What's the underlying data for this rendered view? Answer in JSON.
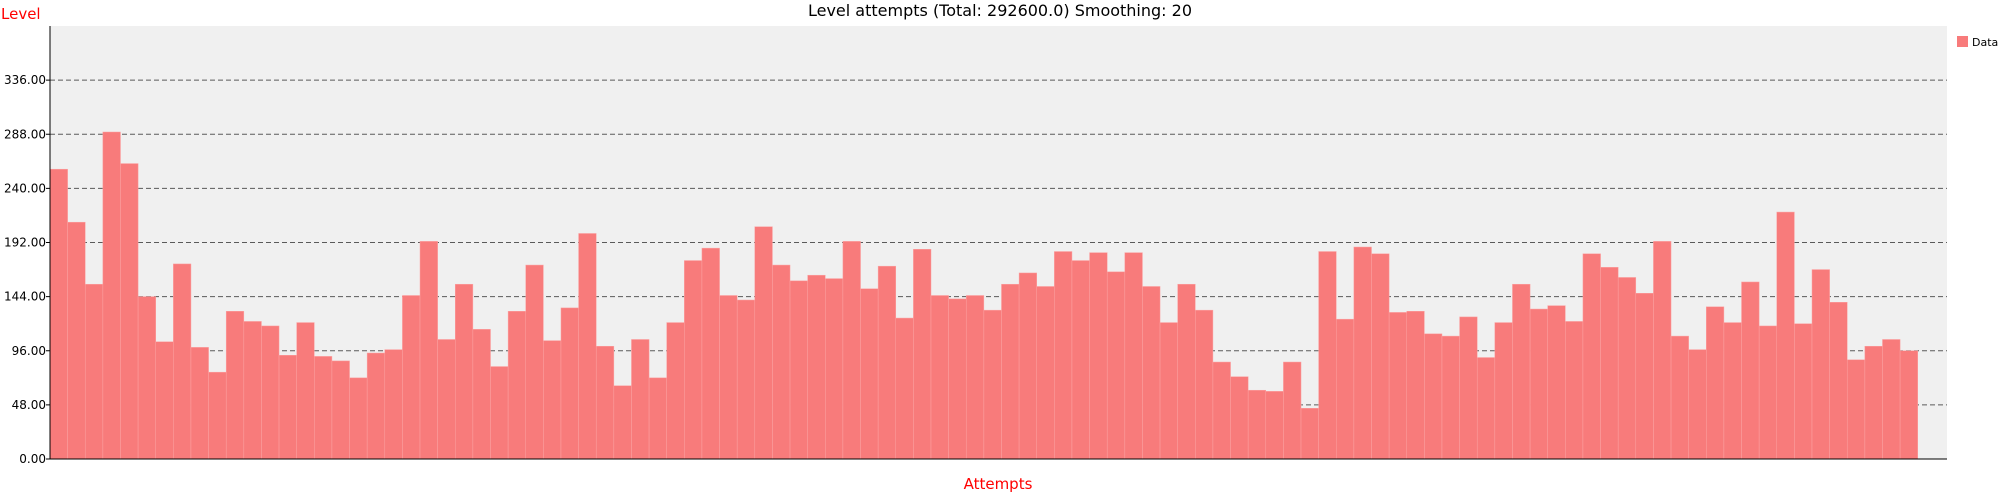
{
  "chart_data": {
    "type": "bar",
    "title": "Level attempts (Total: 292600.0) Smoothing: 20",
    "xlabel": "Attempts",
    "ylabel": "Level",
    "ylim": [
      0,
      384
    ],
    "yticks": [
      "0.00",
      "48.00",
      "96.00",
      "144.00",
      "192.00",
      "240.00",
      "288.00",
      "336.00"
    ],
    "grid": true,
    "legend_position": "top-right",
    "series": [
      {
        "name": "Data",
        "values": [
          257,
          210,
          155,
          290,
          262,
          144,
          104,
          173,
          99,
          77,
          131,
          122,
          118,
          92,
          121,
          91,
          87,
          72,
          94,
          97,
          145,
          193,
          106,
          155,
          115,
          82,
          131,
          172,
          105,
          134,
          200,
          100,
          65,
          106,
          72,
          121,
          176,
          187,
          145,
          141,
          206,
          172,
          158,
          163,
          160,
          193,
          151,
          171,
          125,
          186,
          145,
          142,
          145,
          132,
          155,
          165,
          153,
          184,
          176,
          183,
          166,
          183,
          153,
          121,
          155,
          132,
          86,
          73,
          61,
          60,
          86,
          45,
          184,
          124,
          188,
          182,
          130,
          131,
          111,
          109,
          126,
          90,
          121,
          155,
          133,
          136,
          122,
          182,
          170,
          161,
          147,
          193,
          109,
          97,
          135,
          121,
          157,
          118,
          219,
          120,
          168,
          139,
          88,
          100,
          106,
          96
        ]
      }
    ]
  },
  "colors": {
    "bar": "#f87b7b",
    "plot_background": "#f0f0f0",
    "label_red": "#ff0000",
    "gridline": "#5a5a5a"
  }
}
